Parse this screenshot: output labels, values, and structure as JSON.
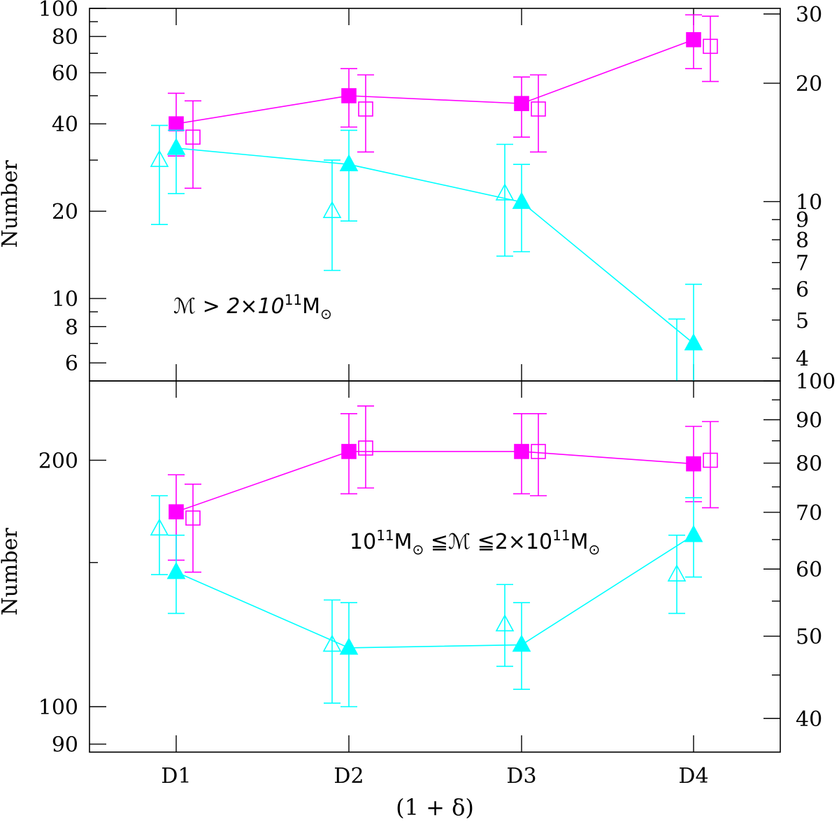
{
  "chart_data": [
    {
      "panel": "top",
      "type": "scatter",
      "categories": [
        "D1",
        "D2",
        "D3",
        "D4"
      ],
      "ylabel": "Number",
      "xlabel": "(1 + δ)",
      "y_scale": "log",
      "ylim": [
        5.2,
        100
      ],
      "yticks_major": [
        6,
        8,
        10,
        20,
        40,
        60,
        80,
        100
      ],
      "yticks_minor": [
        7,
        9,
        30,
        50,
        70,
        90
      ],
      "y2_scale": "log",
      "y2lim": [
        3.5,
        31
      ],
      "y2ticks_labeled": [
        4,
        5,
        6,
        7,
        8,
        9,
        10,
        20,
        30
      ],
      "y2ticks_minor": [],
      "annotation": {
        "prefix": "ℳ  >  2×10",
        "sup": "11",
        "main": "M",
        "sub": "⊙"
      },
      "series": [
        {
          "name": "filled squares",
          "marker": "square",
          "filled": true,
          "color": "#ff00ff",
          "axis": "left",
          "offset": 0,
          "line": true,
          "values": [
            40,
            50,
            47,
            78
          ],
          "err_low": [
            31,
            39,
            36,
            62
          ],
          "err_high": [
            51,
            62,
            58,
            95
          ]
        },
        {
          "name": "open squares",
          "marker": "square",
          "filled": false,
          "color": "#ff00ff",
          "axis": "left",
          "offset": 0.1,
          "line": false,
          "values": [
            36,
            45,
            45,
            74
          ],
          "err_low": [
            24,
            32,
            32,
            56
          ],
          "err_high": [
            48,
            59,
            59,
            94
          ]
        },
        {
          "name": "filled triangles",
          "marker": "triangle",
          "filled": true,
          "color": "#00ffff",
          "axis": "left",
          "offset": 0,
          "line": true,
          "values": [
            33,
            29,
            21.5,
            7
          ],
          "err_low": [
            23,
            18.5,
            14.5,
            5.2
          ],
          "err_high": [
            38,
            38,
            29,
            11.2
          ]
        },
        {
          "name": "open triangles",
          "marker": "triangle",
          "filled": false,
          "color": "#00ffff",
          "axis": "left",
          "offset": -0.1,
          "line": false,
          "values": [
            30,
            20,
            23,
            5.2
          ],
          "err_low": [
            18,
            12.5,
            14,
            5.2
          ],
          "err_high": [
            39.5,
            30,
            34,
            8.5
          ]
        }
      ]
    },
    {
      "panel": "bottom",
      "type": "scatter",
      "categories": [
        "D1",
        "D2",
        "D3",
        "D4"
      ],
      "ylabel": "Number",
      "xlabel": "(1 + δ)",
      "y_scale": "log",
      "ylim": [
        88,
        250
      ],
      "yticks_major": [
        90,
        100,
        200
      ],
      "yticks_minor": [
        150
      ],
      "y2_scale": "log",
      "y2lim": [
        36.5,
        100
      ],
      "y2ticks_labeled": [
        40,
        50,
        60,
        70,
        80,
        90,
        100
      ],
      "y2ticks_minor": [
        45,
        55,
        65,
        75,
        85,
        95
      ],
      "annotation": {
        "prefix": "10",
        "sup": "11",
        "main": "M",
        "sub": "⊙",
        "rest": " ≦ℳ  ≦2×10",
        "sup2": "11",
        "main2": "M",
        "sub2": "⊙"
      },
      "series": [
        {
          "name": "filled squares",
          "marker": "square",
          "filled": true,
          "color": "#ff00ff",
          "axis": "left",
          "offset": 0,
          "line": true,
          "values": [
            173,
            205,
            205,
            198
          ],
          "err_low": [
            151,
            182,
            182,
            178
          ],
          "err_high": [
            192,
            228,
            228,
            220
          ]
        },
        {
          "name": "open squares",
          "marker": "square",
          "filled": false,
          "color": "#ff00ff",
          "axis": "left",
          "offset": 0.1,
          "line": false,
          "values": [
            170,
            207,
            205,
            200
          ],
          "err_low": [
            146,
            185,
            181,
            175
          ],
          "err_high": [
            187,
            233,
            228,
            223
          ]
        },
        {
          "name": "filled triangles",
          "marker": "triangle",
          "filled": true,
          "color": "#00ffff",
          "axis": "left",
          "offset": 0,
          "line": true,
          "values": [
            146,
            118,
            119,
            162
          ],
          "err_low": [
            130,
            100,
            105,
            144
          ],
          "err_high": [
            162,
            134,
            134,
            180
          ]
        },
        {
          "name": "open triangles",
          "marker": "triangle",
          "filled": false,
          "color": "#00ffff",
          "axis": "left",
          "offset": -0.1,
          "line": false,
          "values": [
            165,
            119,
            126,
            145
          ],
          "err_low": [
            145,
            101,
            112,
            130
          ],
          "err_high": [
            181,
            135,
            141,
            162
          ]
        }
      ]
    }
  ]
}
